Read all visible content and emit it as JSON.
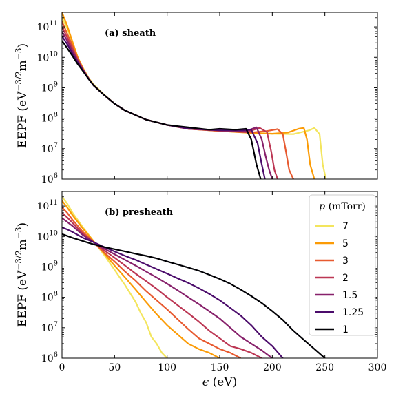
{
  "chart_data": [
    {
      "type": "line",
      "panel_title": "(a) sheath",
      "xlabel": "",
      "ylabel": {
        "base": "EEPF (eV",
        "exp1": "−3/2",
        "mid": "m",
        "exp2": "−3",
        "end": ")"
      },
      "xlim": [
        0,
        300
      ],
      "ylim": [
        1000000,
        300000000000
      ],
      "yscale": "log",
      "xticks": [
        0,
        50,
        100,
        150,
        200,
        250,
        300
      ],
      "yticks": [
        {
          "value": 1000000,
          "base": "10",
          "exp": "6"
        },
        {
          "value": 10000000,
          "base": "10",
          "exp": "7"
        },
        {
          "value": 100000000,
          "base": "10",
          "exp": "8"
        },
        {
          "value": 1000000000,
          "base": "10",
          "exp": "9"
        },
        {
          "value": 10000000000,
          "base": "10",
          "exp": "10"
        },
        {
          "value": 100000000000,
          "base": "10",
          "exp": "11"
        }
      ],
      "grid": false,
      "series": [
        {
          "name": "7",
          "color": "#f3e55d",
          "x": [
            0,
            5,
            10,
            15,
            20,
            25,
            30,
            40,
            50,
            60,
            80,
            100,
            120,
            150,
            180,
            200,
            220,
            235,
            240,
            245,
            248,
            251
          ],
          "y": [
            200000000000.0,
            90000000000.0,
            30000000000.0,
            10000000000.0,
            4500000000.0,
            2200000000.0,
            1300000000.0,
            600000000.0,
            300000000.0,
            180000000.0,
            90000000.0,
            60000000.0,
            45000000.0,
            38000000.0,
            33000000.0,
            31000000.0,
            30000000.0,
            40000000.0,
            48000000.0,
            30000000.0,
            3000000.0,
            1000000.0
          ]
        },
        {
          "name": "5",
          "color": "#fb9b06",
          "x": [
            0,
            5,
            10,
            15,
            20,
            25,
            30,
            40,
            50,
            60,
            80,
            100,
            120,
            150,
            180,
            200,
            215,
            225,
            230,
            233,
            236,
            240
          ],
          "y": [
            300000000000.0,
            110000000000.0,
            32000000000.0,
            10000000000.0,
            4300000000.0,
            2100000000.0,
            1200000000.0,
            580000000.0,
            300000000.0,
            180000000.0,
            90000000.0,
            60000000.0,
            45000000.0,
            38000000.0,
            33000000.0,
            31000000.0,
            34000000.0,
            45000000.0,
            48000000.0,
            20000000.0,
            3000000.0,
            1000000.0
          ]
        },
        {
          "name": "3",
          "color": "#e75a30",
          "x": [
            0,
            5,
            10,
            15,
            20,
            25,
            30,
            40,
            50,
            60,
            80,
            100,
            120,
            150,
            180,
            195,
            205,
            210,
            213,
            216,
            220
          ],
          "y": [
            150000000000.0,
            60000000000.0,
            24000000000.0,
            9000000000.0,
            4200000000.0,
            2100000000.0,
            1200000000.0,
            580000000.0,
            300000000.0,
            180000000.0,
            90000000.0,
            60000000.0,
            45000000.0,
            38000000.0,
            34000000.0,
            38000000.0,
            44000000.0,
            30000000.0,
            8000000.0,
            2000000.0,
            1000000.0
          ]
        },
        {
          "name": "2",
          "color": "#bc3754",
          "x": [
            0,
            5,
            10,
            15,
            20,
            25,
            30,
            40,
            50,
            60,
            80,
            100,
            120,
            150,
            175,
            188,
            195,
            199,
            202,
            205
          ],
          "y": [
            100000000000.0,
            45000000000.0,
            19000000000.0,
            8000000000.0,
            4000000000.0,
            2100000000.0,
            1200000000.0,
            580000000.0,
            300000000.0,
            180000000.0,
            90000000.0,
            60000000.0,
            45000000.0,
            39000000.0,
            35000000.0,
            48000000.0,
            35000000.0,
            8000000.0,
            2000000.0,
            1000000.0
          ]
        },
        {
          "name": "1.5",
          "color": "#87216b",
          "x": [
            0,
            5,
            10,
            15,
            20,
            25,
            30,
            40,
            50,
            60,
            80,
            100,
            120,
            150,
            175,
            185,
            190,
            194,
            197,
            200
          ],
          "y": [
            70000000000.0,
            35000000000.0,
            16000000000.0,
            7500000000.0,
            3900000000.0,
            2100000000.0,
            1200000000.0,
            580000000.0,
            300000000.0,
            180000000.0,
            90000000.0,
            60000000.0,
            45000000.0,
            40000000.0,
            38000000.0,
            50000000.0,
            20000000.0,
            5000000.0,
            2000000.0,
            1000000.0
          ]
        },
        {
          "name": "1.25",
          "color": "#4b0c6b",
          "x": [
            0,
            5,
            10,
            15,
            20,
            25,
            30,
            40,
            50,
            60,
            80,
            100,
            120,
            150,
            170,
            180,
            186,
            190,
            193
          ],
          "y": [
            50000000000.0,
            27000000000.0,
            13000000000.0,
            6800000000.0,
            3700000000.0,
            2000000000.0,
            1200000000.0,
            580000000.0,
            300000000.0,
            180000000.0,
            90000000.0,
            60000000.0,
            46000000.0,
            40000000.0,
            40000000.0,
            42000000.0,
            15000000.0,
            3000000.0,
            1000000.0
          ]
        },
        {
          "name": "1",
          "color": "#000004",
          "x": [
            0,
            5,
            10,
            15,
            20,
            25,
            30,
            40,
            50,
            60,
            80,
            100,
            120,
            140,
            150,
            165,
            175,
            180,
            185,
            189
          ],
          "y": [
            35000000000.0,
            20000000000.0,
            11000000000.0,
            6000000000.0,
            3500000000.0,
            2000000000.0,
            1200000000.0,
            580000000.0,
            300000000.0,
            180000000.0,
            90000000.0,
            60000000.0,
            50000000.0,
            42000000.0,
            45000000.0,
            42000000.0,
            45000000.0,
            20000000.0,
            3000000.0,
            1000000.0
          ]
        }
      ]
    },
    {
      "type": "line",
      "panel_title": "(b) presheath",
      "xlabel": {
        "sym": "ϵ",
        "unit": " (eV)"
      },
      "ylabel": {
        "base": "EEPF (eV",
        "exp1": "−3/2",
        "mid": "m",
        "exp2": "−3",
        "end": ")"
      },
      "xlim": [
        0,
        300
      ],
      "ylim": [
        1000000,
        300000000000
      ],
      "yscale": "log",
      "xticks": [
        0,
        50,
        100,
        150,
        200,
        250,
        300
      ],
      "yticks": [
        {
          "value": 1000000,
          "base": "10",
          "exp": "6"
        },
        {
          "value": 10000000,
          "base": "10",
          "exp": "7"
        },
        {
          "value": 100000000,
          "base": "10",
          "exp": "8"
        },
        {
          "value": 1000000000,
          "base": "10",
          "exp": "9"
        },
        {
          "value": 10000000000,
          "base": "10",
          "exp": "10"
        },
        {
          "value": 100000000000,
          "base": "10",
          "exp": "11"
        }
      ],
      "grid": false,
      "legend": {
        "position": "right",
        "title_sym": "p",
        "title_unit": " (mTorr)"
      },
      "series": [
        {
          "name": "7",
          "color": "#f3e55d",
          "x": [
            0,
            5,
            10,
            20,
            30,
            40,
            50,
            60,
            70,
            75,
            80,
            85,
            90,
            95,
            100
          ],
          "y": [
            200000000000.0,
            120000000000.0,
            60000000000.0,
            20000000000.0,
            7000000000.0,
            2500000000.0,
            800000000.0,
            250000000.0,
            70000000.0,
            30000000.0,
            15000000.0,
            5000000.0,
            3000000.0,
            1500000.0,
            1000000.0
          ]
        },
        {
          "name": "5",
          "color": "#fb9b06",
          "x": [
            0,
            5,
            10,
            20,
            30,
            40,
            50,
            60,
            70,
            80,
            90,
            100,
            110,
            120,
            130,
            140,
            150
          ],
          "y": [
            150000000000.0,
            90000000000.0,
            50000000000.0,
            18000000000.0,
            7000000000.0,
            2800000000.0,
            1100000000.0,
            450000000.0,
            180000000.0,
            70000000.0,
            28000000.0,
            12000000.0,
            6000000.0,
            3000000.0,
            2000000.0,
            1500000.0,
            1000000.0
          ]
        },
        {
          "name": "3",
          "color": "#e75a30",
          "x": [
            0,
            5,
            10,
            20,
            30,
            40,
            50,
            60,
            70,
            80,
            90,
            100,
            110,
            120,
            130,
            140,
            150,
            160,
            170
          ],
          "y": [
            90000000000.0,
            60000000000.0,
            35000000000.0,
            14000000000.0,
            6500000000.0,
            3000000000.0,
            1500000000.0,
            700000000.0,
            350000000.0,
            160000000.0,
            80000000.0,
            40000000.0,
            19000000.0,
            9000000.0,
            4500000.0,
            3000000.0,
            2000000.0,
            1500000.0,
            1000000.0
          ]
        },
        {
          "name": "2",
          "color": "#bc3754",
          "x": [
            0,
            5,
            10,
            20,
            30,
            40,
            50,
            60,
            70,
            80,
            90,
            100,
            110,
            120,
            130,
            140,
            150,
            160,
            170,
            180,
            190
          ],
          "y": [
            60000000000.0,
            42000000000.0,
            28000000000.0,
            12000000000.0,
            6500000000.0,
            3500000000.0,
            2000000000.0,
            1100000000.0,
            600000000.0,
            340000000.0,
            190000000.0,
            100000000.0,
            55000000.0,
            30000000.0,
            16000000.0,
            8000000.0,
            4500000.0,
            2500000.0,
            2000000.0,
            1500000.0,
            1000000.0
          ]
        },
        {
          "name": "1.5",
          "color": "#87216b",
          "x": [
            0,
            5,
            10,
            20,
            30,
            40,
            50,
            60,
            70,
            80,
            90,
            100,
            110,
            120,
            130,
            140,
            150,
            160,
            170,
            180,
            190,
            200
          ],
          "y": [
            40000000000.0,
            30000000000.0,
            22000000000.0,
            11000000000.0,
            6500000000.0,
            4000000000.0,
            2600000000.0,
            1700000000.0,
            1100000000.0,
            700000000.0,
            450000000.0,
            280000000.0,
            170000000.0,
            100000000.0,
            60000000.0,
            35000000.0,
            20000000.0,
            10000000.0,
            5000000.0,
            3000000.0,
            1800000.0,
            1000000.0
          ]
        },
        {
          "name": "1.25",
          "color": "#4b0c6b",
          "x": [
            0,
            5,
            10,
            20,
            30,
            40,
            50,
            60,
            70,
            80,
            90,
            100,
            110,
            120,
            130,
            140,
            150,
            160,
            170,
            180,
            190,
            200,
            210
          ],
          "y": [
            20000000000.0,
            17000000000.0,
            14000000000.0,
            9000000000.0,
            6500000000.0,
            4500000000.0,
            3200000000.0,
            2300000000.0,
            1700000000.0,
            1200000000.0,
            850000000.0,
            600000000.0,
            420000000.0,
            300000000.0,
            200000000.0,
            130000000.0,
            80000000.0,
            45000000.0,
            25000000.0,
            12000000.0,
            5000000.0,
            2500000.0,
            1000000.0
          ]
        },
        {
          "name": "1",
          "color": "#000004",
          "x": [
            0,
            10,
            20,
            30,
            40,
            50,
            60,
            70,
            80,
            90,
            100,
            110,
            120,
            130,
            140,
            150,
            160,
            170,
            180,
            190,
            200,
            210,
            220,
            230,
            240,
            250
          ],
          "y": [
            12000000000.0,
            9000000000.0,
            7000000000.0,
            5500000000.0,
            4500000000.0,
            3800000000.0,
            3200000000.0,
            2700000000.0,
            2300000000.0,
            1900000000.0,
            1500000000.0,
            1200000000.0,
            950000000.0,
            750000000.0,
            550000000.0,
            400000000.0,
            280000000.0,
            180000000.0,
            110000000.0,
            65000000.0,
            35000000.0,
            18000000.0,
            8000000.0,
            4000000.0,
            2000000.0,
            1000000.0
          ]
        }
      ]
    }
  ]
}
